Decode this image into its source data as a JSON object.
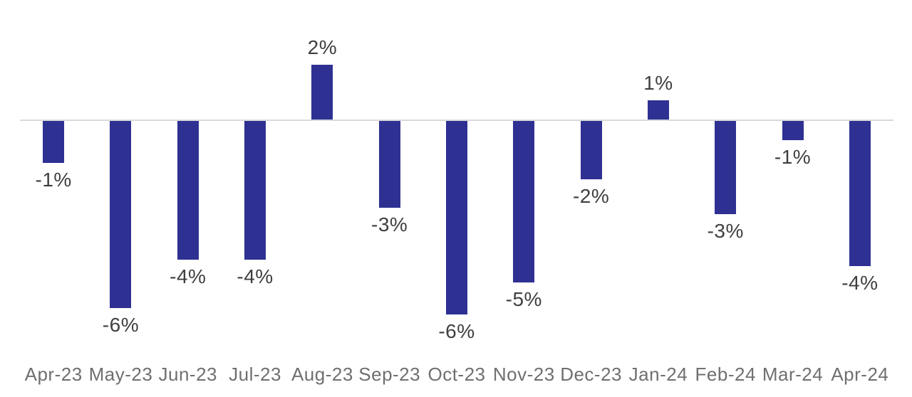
{
  "chart_data": {
    "type": "bar",
    "title": "",
    "xlabel": "",
    "ylabel": "",
    "unit": "%",
    "categories": [
      "Apr-23",
      "May-23",
      "Jun-23",
      "Jul-23",
      "Aug-23",
      "Sep-23",
      "Oct-23",
      "Nov-23",
      "Dec-23",
      "Jan-24",
      "Feb-24",
      "Mar-24",
      "Apr-24"
    ],
    "values": [
      -1,
      -6,
      -4,
      -4,
      2,
      -3,
      -6,
      -5,
      -2,
      1,
      -3,
      -1,
      -4
    ],
    "value_labels": [
      "-1%",
      "-6%",
      "-4%",
      "-4%",
      "2%",
      "-3%",
      "-6%",
      "-5%",
      "-2%",
      "1%",
      "-3%",
      "-1%",
      "-4%"
    ],
    "estimated_precise_values": [
      -1.3,
      -5.8,
      -4.3,
      -4.3,
      1.7,
      -2.7,
      -6.0,
      -5.0,
      -1.8,
      0.6,
      -2.9,
      -0.6,
      -4.5
    ],
    "ylim": [
      -7,
      3
    ],
    "grid": false,
    "legend": false,
    "value_axis_visible": false,
    "zero_baseline_visible": true,
    "colors": {
      "bar": "#2e3192",
      "baseline": "#d9d9d9",
      "value_label": "#3f3f3f",
      "axis_label": "#6f6f6f",
      "background": "#ffffff"
    }
  }
}
